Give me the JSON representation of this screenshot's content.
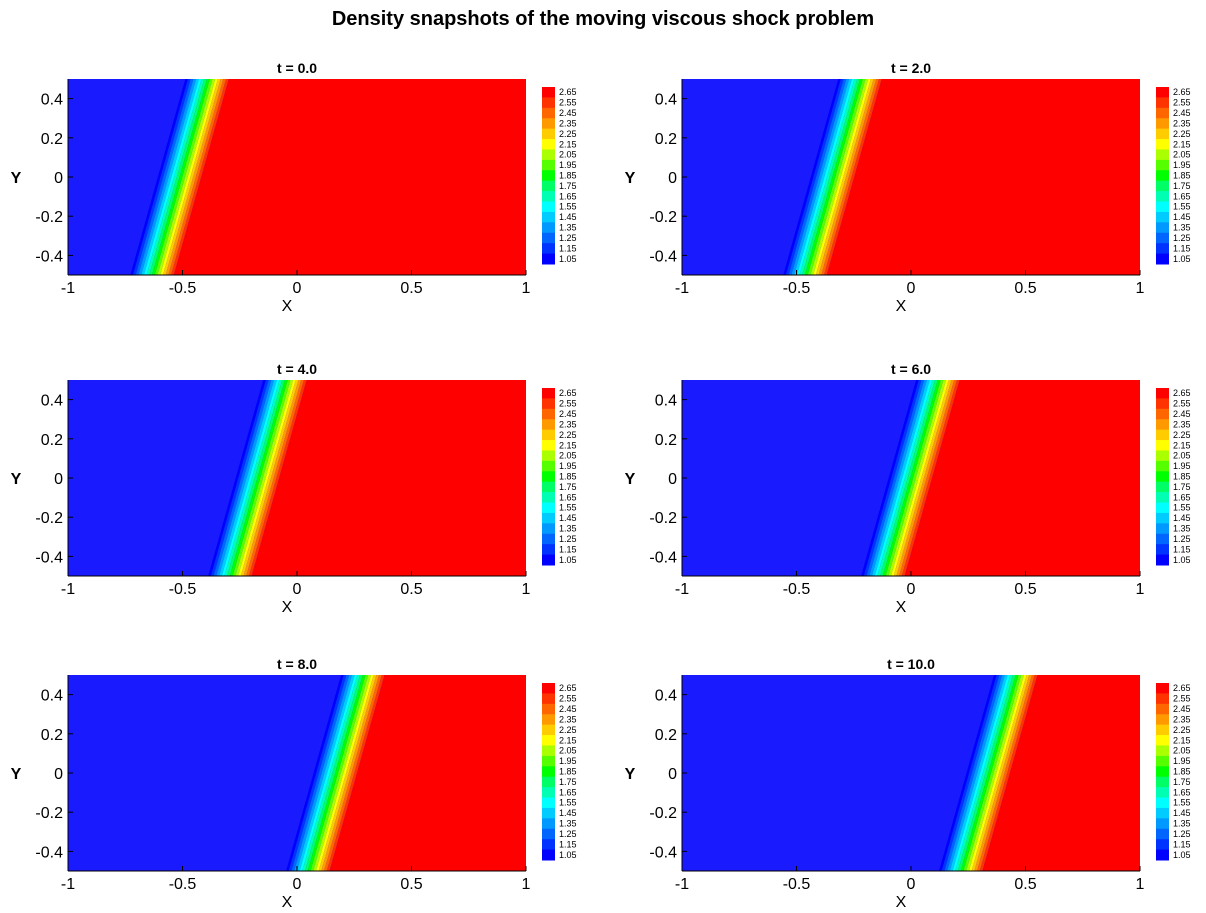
{
  "figure": {
    "title": "Density snapshots of the moving viscous shock problem"
  },
  "colors": {
    "low": "#1a1aff",
    "high": "#ff0000"
  },
  "colormap": [
    "#0000ff",
    "#0033ff",
    "#0066ff",
    "#0099ff",
    "#00ccff",
    "#00ffff",
    "#00ffb3",
    "#00ff66",
    "#00ff00",
    "#55ff00",
    "#aaff00",
    "#ffff00",
    "#ffcc00",
    "#ff9900",
    "#ff6600",
    "#ff3300",
    "#ff0000"
  ],
  "chart_data": [
    {
      "type": "heatmap",
      "title": "t = 0.0",
      "xlabel": "X",
      "ylabel": "Y",
      "xlim": [
        -1,
        1
      ],
      "ylim": [
        -0.5,
        0.5
      ],
      "xticks": [
        "-1",
        "-0.5",
        "0",
        "0.5",
        "1"
      ],
      "yticks": [
        "0.4",
        "0.2",
        "0",
        "-0.2",
        "-0.4"
      ],
      "colorbar_levels": [
        "2.65",
        "2.55",
        "2.45",
        "2.35",
        "2.25",
        "2.15",
        "2.05",
        "1.95",
        "1.85",
        "1.75",
        "1.65",
        "1.55",
        "1.45",
        "1.35",
        "1.25",
        "1.15",
        "1.05"
      ],
      "shock_x_at_y_bottom": -0.61,
      "shock_x_at_y_top": -0.37
    },
    {
      "type": "heatmap",
      "title": "t = 2.0",
      "xlabel": "X",
      "ylabel": "Y",
      "xlim": [
        -1,
        1
      ],
      "ylim": [
        -0.5,
        0.5
      ],
      "xticks": [
        "-1",
        "-0.5",
        "0",
        "0.5",
        "1"
      ],
      "yticks": [
        "0.4",
        "0.2",
        "0",
        "-0.2",
        "-0.4"
      ],
      "colorbar_levels": [
        "2.65",
        "2.55",
        "2.45",
        "2.35",
        "2.25",
        "2.15",
        "2.05",
        "1.95",
        "1.85",
        "1.75",
        "1.65",
        "1.55",
        "1.45",
        "1.35",
        "1.25",
        "1.15",
        "1.05"
      ],
      "shock_x_at_y_bottom": -0.44,
      "shock_x_at_y_top": -0.2
    },
    {
      "type": "heatmap",
      "title": "t = 4.0",
      "xlabel": "X",
      "ylabel": "Y",
      "xlim": [
        -1,
        1
      ],
      "ylim": [
        -0.5,
        0.5
      ],
      "xticks": [
        "-1",
        "-0.5",
        "0",
        "0.5",
        "1"
      ],
      "yticks": [
        "0.4",
        "0.2",
        "0",
        "-0.2",
        "-0.4"
      ],
      "colorbar_levels": [
        "2.65",
        "2.55",
        "2.45",
        "2.35",
        "2.25",
        "2.15",
        "2.05",
        "1.95",
        "1.85",
        "1.75",
        "1.65",
        "1.55",
        "1.45",
        "1.35",
        "1.25",
        "1.15",
        "1.05"
      ],
      "shock_x_at_y_bottom": -0.27,
      "shock_x_at_y_top": -0.03
    },
    {
      "type": "heatmap",
      "title": "t = 6.0",
      "xlabel": "X",
      "ylabel": "Y",
      "xlim": [
        -1,
        1
      ],
      "ylim": [
        -0.5,
        0.5
      ],
      "xticks": [
        "-1",
        "-0.5",
        "0",
        "0.5",
        "1"
      ],
      "yticks": [
        "0.4",
        "0.2",
        "0",
        "-0.2",
        "-0.4"
      ],
      "colorbar_levels": [
        "2.65",
        "2.55",
        "2.45",
        "2.35",
        "2.25",
        "2.15",
        "2.05",
        "1.95",
        "1.85",
        "1.75",
        "1.65",
        "1.55",
        "1.45",
        "1.35",
        "1.25",
        "1.15",
        "1.05"
      ],
      "shock_x_at_y_bottom": -0.1,
      "shock_x_at_y_top": 0.14
    },
    {
      "type": "heatmap",
      "title": "t = 8.0",
      "xlabel": "X",
      "ylabel": "Y",
      "xlim": [
        -1,
        1
      ],
      "ylim": [
        -0.5,
        0.5
      ],
      "xticks": [
        "-1",
        "-0.5",
        "0",
        "0.5",
        "1"
      ],
      "yticks": [
        "0.4",
        "0.2",
        "0",
        "-0.2",
        "-0.4"
      ],
      "colorbar_levels": [
        "2.65",
        "2.55",
        "2.45",
        "2.35",
        "2.25",
        "2.15",
        "2.05",
        "1.95",
        "1.85",
        "1.75",
        "1.65",
        "1.55",
        "1.45",
        "1.35",
        "1.25",
        "1.15",
        "1.05"
      ],
      "shock_x_at_y_bottom": 0.07,
      "shock_x_at_y_top": 0.31
    },
    {
      "type": "heatmap",
      "title": "t = 10.0",
      "xlabel": "X",
      "ylabel": "Y",
      "xlim": [
        -1,
        1
      ],
      "ylim": [
        -0.5,
        0.5
      ],
      "xticks": [
        "-1",
        "-0.5",
        "0",
        "0.5",
        "1"
      ],
      "yticks": [
        "0.4",
        "0.2",
        "0",
        "-0.2",
        "-0.4"
      ],
      "colorbar_levels": [
        "2.65",
        "2.55",
        "2.45",
        "2.35",
        "2.25",
        "2.15",
        "2.05",
        "1.95",
        "1.85",
        "1.75",
        "1.65",
        "1.55",
        "1.45",
        "1.35",
        "1.25",
        "1.15",
        "1.05"
      ],
      "shock_x_at_y_bottom": 0.24,
      "shock_x_at_y_top": 0.48
    }
  ]
}
